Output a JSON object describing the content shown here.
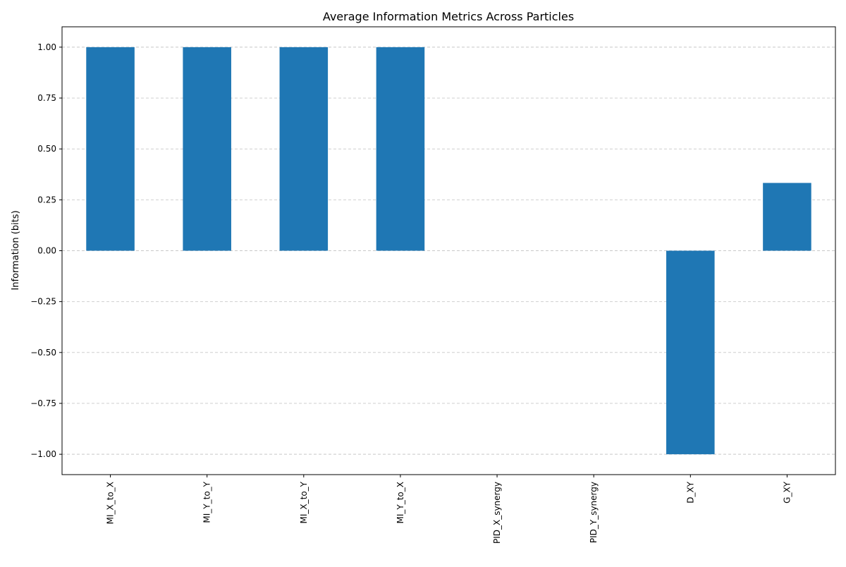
{
  "chart_data": {
    "type": "bar",
    "title": "Average Information Metrics Across Particles",
    "xlabel": "",
    "ylabel": "Information (bits)",
    "categories": [
      "MI_X_to_X",
      "MI_Y_to_Y",
      "MI_X_to_Y",
      "MI_Y_to_X",
      "PID_X_synergy",
      "PID_Y_synergy",
      "D_XY",
      "G_XY"
    ],
    "values": [
      1.0,
      1.0,
      1.0,
      1.0,
      0.0,
      0.0,
      -1.0,
      0.333
    ],
    "ylim": [
      -1.1,
      1.1
    ],
    "yticks": [
      -1.0,
      -0.75,
      -0.5,
      -0.25,
      0.0,
      0.25,
      0.5,
      0.75,
      1.0
    ],
    "ytick_labels": [
      "−1.00",
      "−0.75",
      "−0.50",
      "−0.25",
      "0.00",
      "0.25",
      "0.50",
      "0.75",
      "1.00"
    ],
    "grid": "y-dashed",
    "legend": "none",
    "colors": {
      "bar": "#1f77b4",
      "grid": "#c8c8c8",
      "axis": "#000000"
    }
  }
}
